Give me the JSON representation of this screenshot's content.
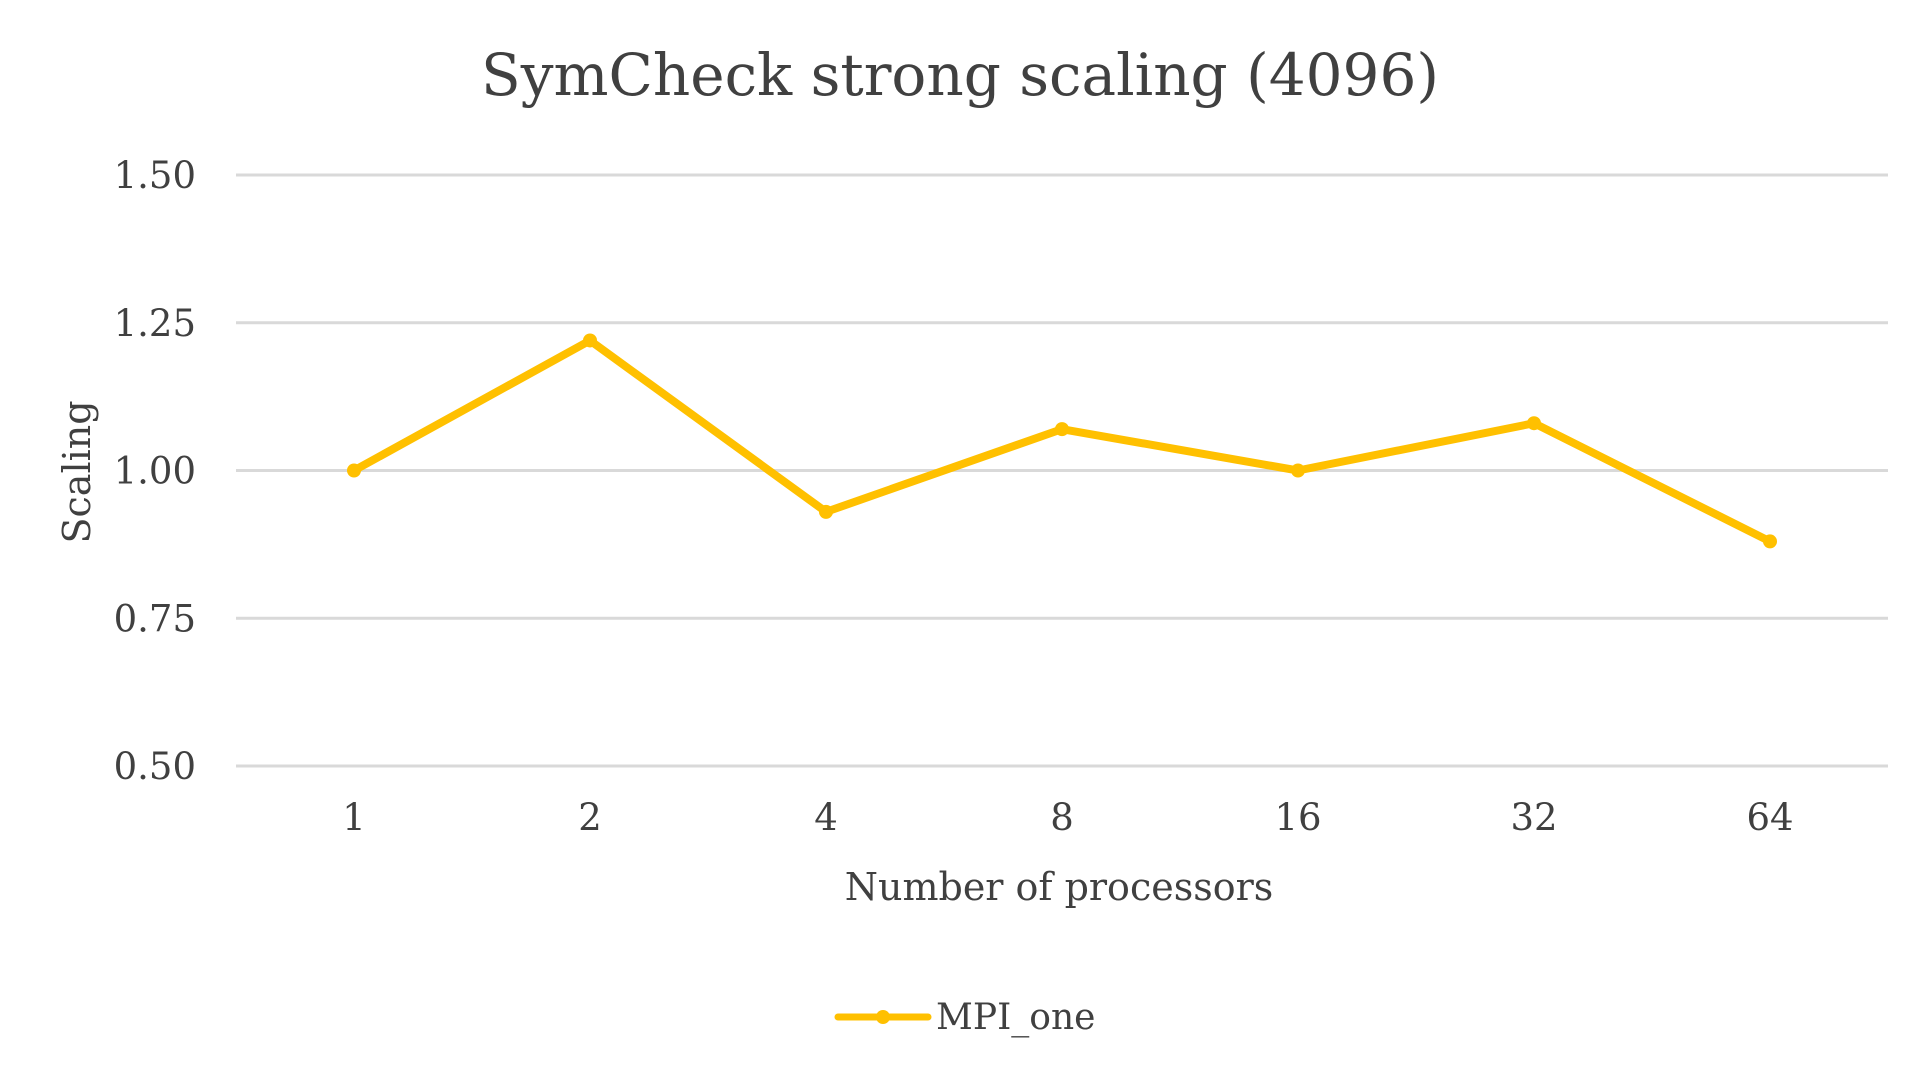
{
  "chart_data": {
    "type": "line",
    "title": "SymCheck strong scaling (4096)",
    "xlabel": "Number of processors",
    "ylabel": "Scaling",
    "categories": [
      "1",
      "2",
      "4",
      "8",
      "16",
      "32",
      "64"
    ],
    "y_ticks": [
      "0.50",
      "0.75",
      "1.00",
      "1.25",
      "1.50"
    ],
    "ylim": [
      0.5,
      1.5
    ],
    "grid": true,
    "legend_position": "bottom",
    "series": [
      {
        "name": "MPI_one",
        "color": "#FFC000",
        "values": [
          1.0,
          1.22,
          0.93,
          1.07,
          1.0,
          1.08,
          0.88
        ]
      }
    ]
  }
}
